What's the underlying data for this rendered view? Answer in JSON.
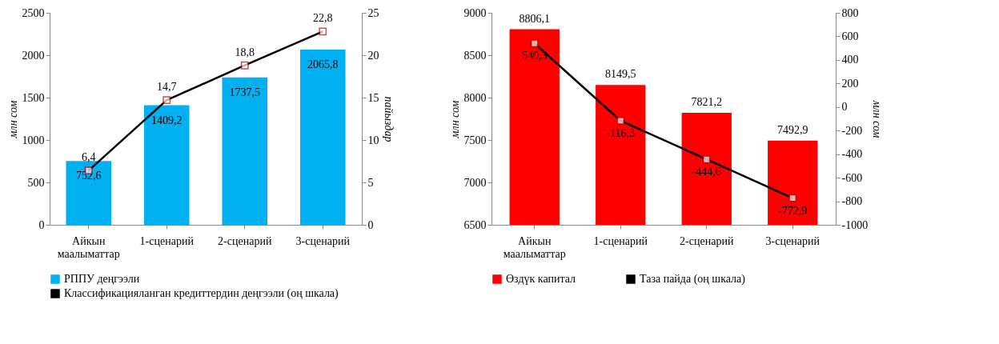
{
  "chart_data": [
    {
      "type": "bar",
      "categories": [
        "Айкын маалыматтар",
        "1-сценарий",
        "2-сценарий",
        "3-сценарий"
      ],
      "ylabel": "млн сом",
      "y2label": "пайыздар",
      "ylim": [
        0,
        2500
      ],
      "yticks": [
        0,
        500,
        1000,
        1500,
        2000,
        2500
      ],
      "y2lim": [
        0,
        25
      ],
      "y2ticks": [
        0,
        5,
        10,
        15,
        20,
        25
      ],
      "legend": "bottom",
      "series": [
        {
          "name": "РППУ деңгээли",
          "color": "#00b0f0",
          "values": [
            752.6,
            1409.2,
            1737.5,
            2065.8
          ],
          "value_labels": [
            "752,6",
            "1409,2",
            "1737,5",
            "2065,8"
          ]
        },
        {
          "name": "Классификацияланган кредиттердин деңгээли (оң шкала)",
          "type": "line",
          "axis": "y2",
          "marker": "square",
          "color": "#000000",
          "values": [
            6.4,
            14.7,
            18.8,
            22.8
          ],
          "value_labels": [
            "6,4",
            "14,7",
            "18,8",
            "22,8"
          ]
        }
      ]
    },
    {
      "type": "bar",
      "categories": [
        "Айкын маалыматтар",
        "1-сценарий",
        "2-сценарий",
        "3-сценарий"
      ],
      "ylabel": "млн сом",
      "y2label": "млн сом",
      "ylim": [
        6500,
        9000
      ],
      "yticks": [
        6500,
        7000,
        7500,
        8000,
        8500,
        9000
      ],
      "y2lim": [
        -1000,
        800
      ],
      "y2ticks": [
        -1000,
        -800,
        -600,
        -400,
        -200,
        0,
        200,
        400,
        600,
        800
      ],
      "legend": "bottom",
      "series": [
        {
          "name": "Өздүк капитал",
          "color": "#ff0000",
          "values": [
            8806.1,
            8149.5,
            7821.2,
            7492.9
          ],
          "value_labels": [
            "8806,1",
            "8149,5",
            "7821,2",
            "7492,9"
          ]
        },
        {
          "name": "Таза пайда (оң шкала)",
          "type": "line",
          "axis": "y2",
          "marker": "square",
          "color": "#000000",
          "values": [
            540.3,
            -116.3,
            -444.6,
            -772.9
          ],
          "value_labels": [
            "540,3",
            "-116,3",
            "-444,6",
            "-772,9"
          ]
        }
      ]
    }
  ]
}
